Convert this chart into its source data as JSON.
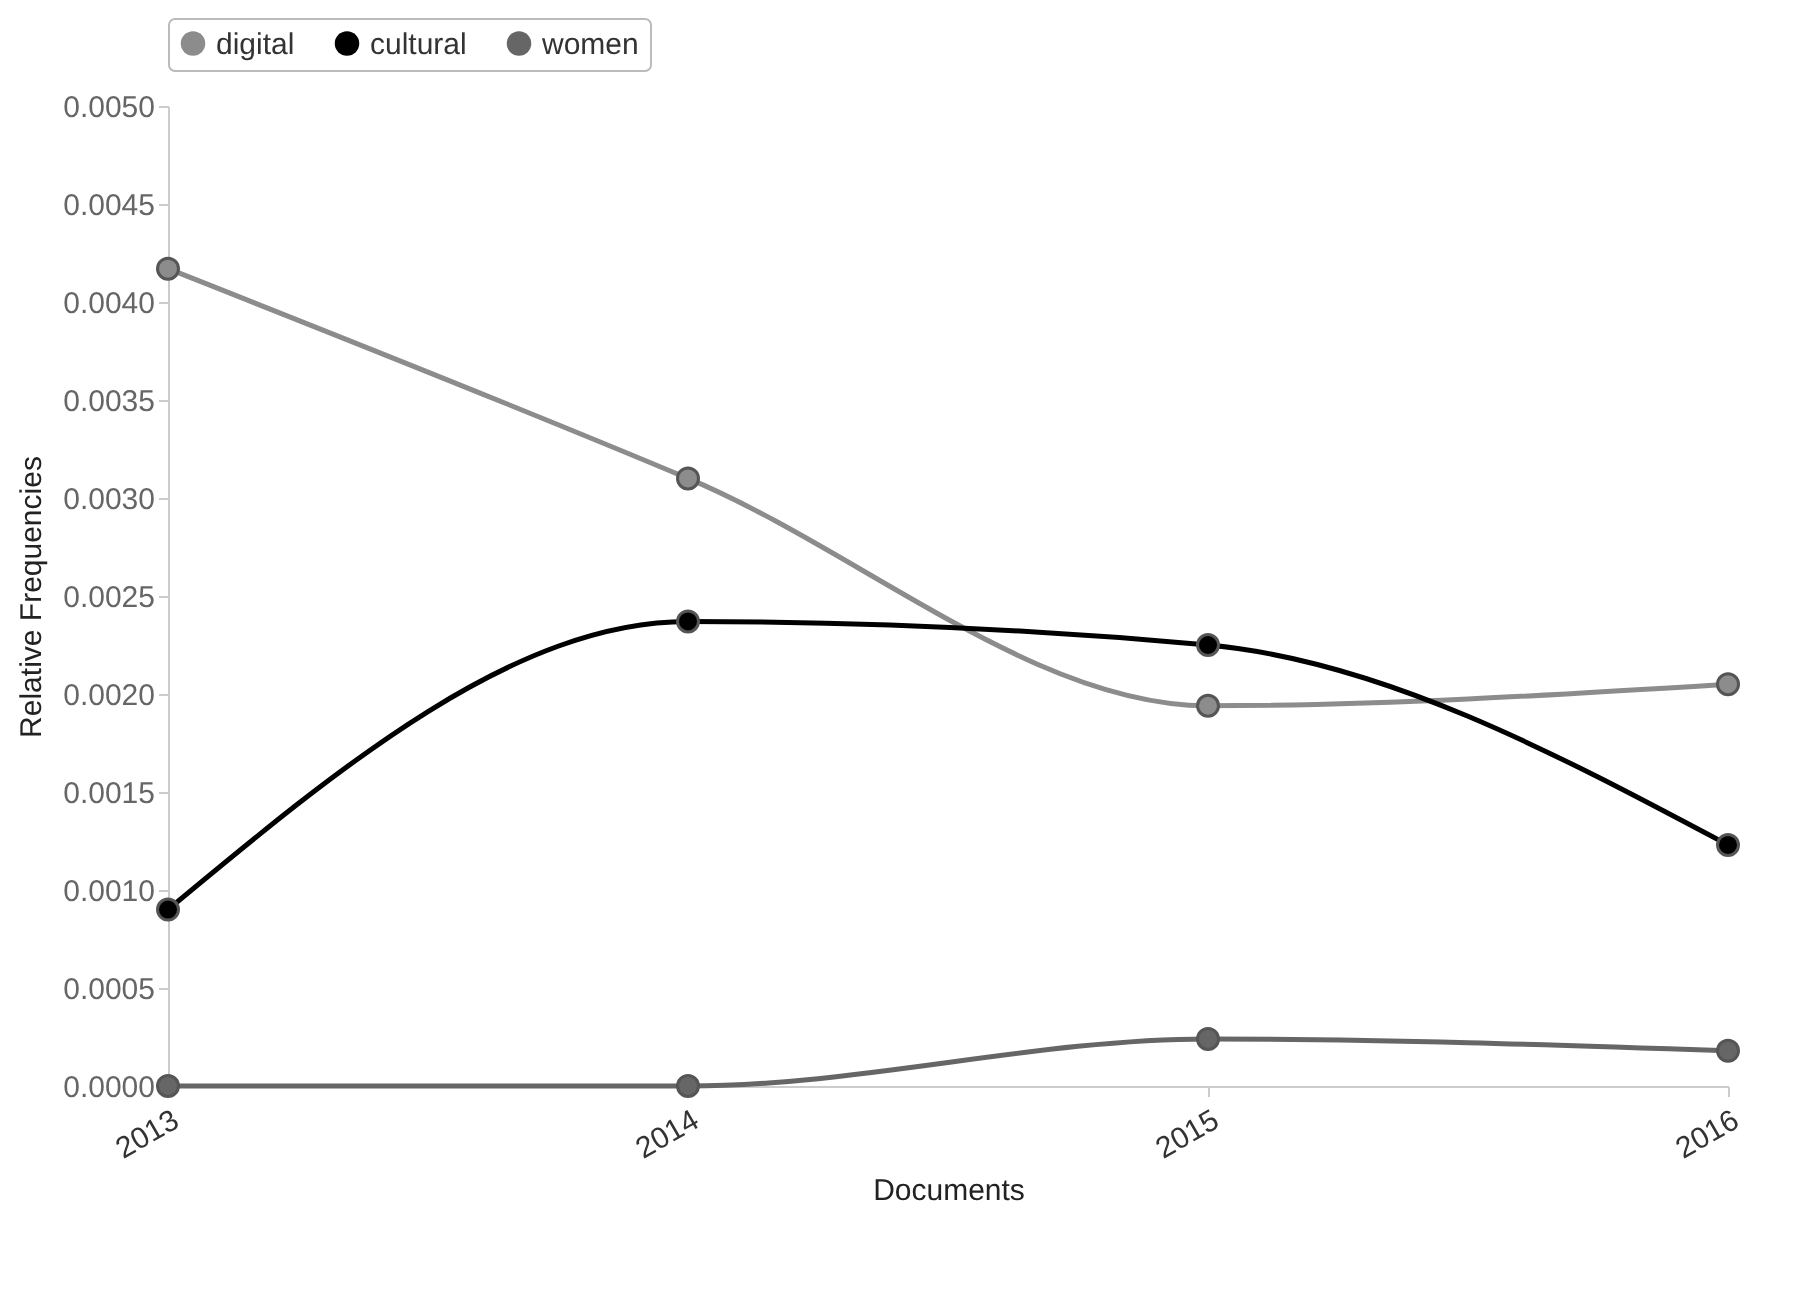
{
  "chart_data": {
    "type": "line",
    "xlabel": "Documents",
    "ylabel": "Relative Frequencies",
    "categories": [
      "2013",
      "2014",
      "2015",
      "2016"
    ],
    "series": [
      {
        "name": "digital",
        "color": "#8c8c8c",
        "values": [
          0.00417,
          0.0031,
          0.00194,
          0.00205
        ]
      },
      {
        "name": "cultural",
        "color": "#000000",
        "values": [
          0.0009,
          0.00237,
          0.00225,
          0.00123
        ]
      },
      {
        "name": "women",
        "color": "#666666",
        "values": [
          0,
          0,
          0.00024,
          0.00018
        ]
      }
    ],
    "ylim": [
      0,
      0.005
    ],
    "yticks": [
      {
        "value": 0,
        "label": "0.0000"
      },
      {
        "value": 0.0005,
        "label": "0.0005"
      },
      {
        "value": 0.001,
        "label": "0.0010"
      },
      {
        "value": 0.0015,
        "label": "0.0015"
      },
      {
        "value": 0.002,
        "label": "0.0020"
      },
      {
        "value": 0.0025,
        "label": "0.0025"
      },
      {
        "value": 0.003,
        "label": "0.0030"
      },
      {
        "value": 0.0035,
        "label": "0.0035"
      },
      {
        "value": 0.004,
        "label": "0.0040"
      },
      {
        "value": 0.0045,
        "label": "0.0045"
      },
      {
        "value": 0.005,
        "label": "0.0050"
      }
    ],
    "grid": false,
    "legend": "top",
    "marker": "circle",
    "line_style": "solid"
  }
}
